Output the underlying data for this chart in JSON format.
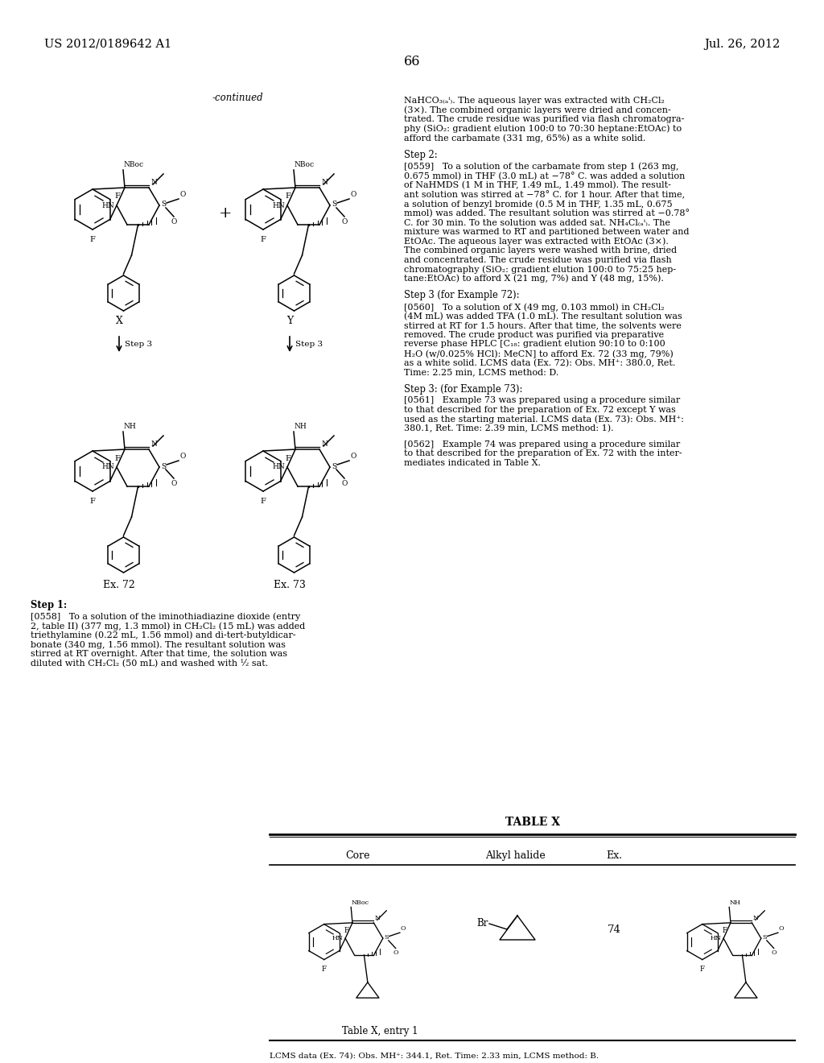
{
  "page_header_left": "US 2012/0189642 A1",
  "page_header_right": "Jul. 26, 2012",
  "page_number": "66",
  "background_color": "#ffffff",
  "text_color": "#000000"
}
